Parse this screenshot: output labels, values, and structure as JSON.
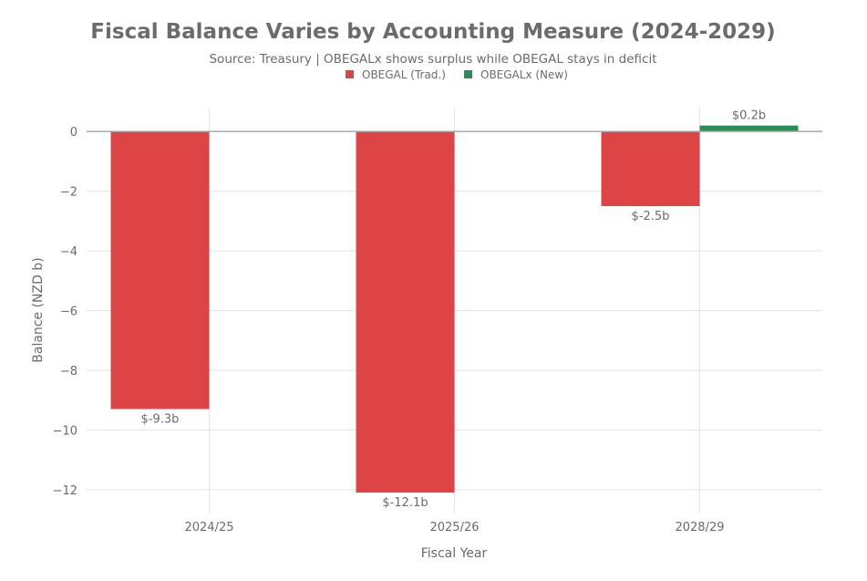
{
  "chart_data": {
    "type": "bar",
    "title": "Fiscal Balance Varies by Accounting Measure (2024-2029)",
    "subtitle": "Source: Treasury | OBEGALx shows surplus while OBEGAL stays in deficit",
    "xlabel": "Fiscal Year",
    "ylabel": "Balance (NZD b)",
    "categories": [
      "2024/25",
      "2025/26",
      "2028/29"
    ],
    "series": [
      {
        "name": "OBEGAL (Trad.)",
        "color": "#dc4446",
        "values": [
          -9.3,
          -12.1,
          -2.5
        ],
        "labels": [
          "$-9.3b",
          "$-12.1b",
          "$-2.5b"
        ]
      },
      {
        "name": "OBEGALx (New)",
        "color": "#2e8b57",
        "values": [
          null,
          null,
          0.2
        ],
        "labels": [
          null,
          null,
          "$0.2b"
        ]
      }
    ],
    "ylim": [
      -12.8,
      0.8
    ],
    "yticks": [
      0,
      -2,
      -4,
      -6,
      -8,
      -10,
      -12
    ],
    "ytick_labels": [
      "0",
      "−2",
      "−4",
      "−6",
      "−8",
      "−10",
      "−12"
    ],
    "grid": true,
    "legend_position": "top-center"
  }
}
